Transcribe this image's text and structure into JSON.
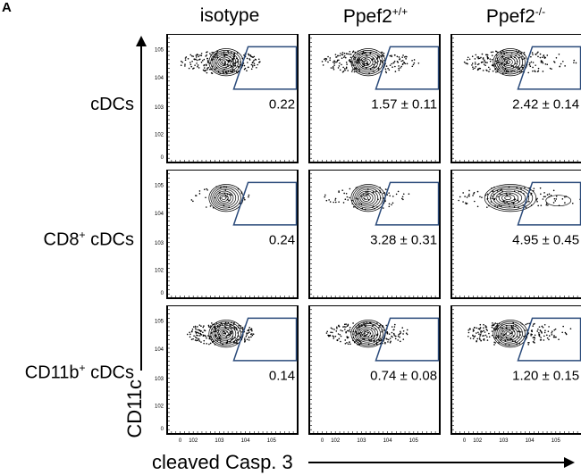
{
  "panel_label": "A",
  "chart_data": {
    "type": "contour",
    "title": "",
    "xlabel": "cleaved Casp. 3",
    "ylabel": "CD11c",
    "xscale": "biexponential",
    "yscale": "biexponential",
    "xticks": [
      "0",
      "10^2",
      "10^3",
      "10^4",
      "10^5"
    ],
    "yticks": [
      "0",
      "10^2",
      "10^3",
      "10^4",
      "10^5"
    ],
    "columns": [
      {
        "label": "isotype",
        "sup": ""
      },
      {
        "label": "Ppef2",
        "sup": "+/+"
      },
      {
        "label": "Ppef2",
        "sup": "-/-"
      }
    ],
    "rows": [
      {
        "label": "cDCs",
        "sup": ""
      },
      {
        "label": "CD8",
        "sup": "+",
        "suffix": " cDCs"
      },
      {
        "label": "CD11b",
        "sup": "+",
        "suffix": " cDCs"
      }
    ],
    "gate_values": [
      [
        "0.22",
        "1.57 ± 0.11",
        "2.42 ± 0.14"
      ],
      [
        "0.24",
        "3.28 ± 0.31",
        "4.95 ± 0.45"
      ],
      [
        "0.14",
        "0.74 ± 0.08",
        "1.20 ± 0.15"
      ]
    ],
    "gate_color": "#2a4a7a"
  }
}
